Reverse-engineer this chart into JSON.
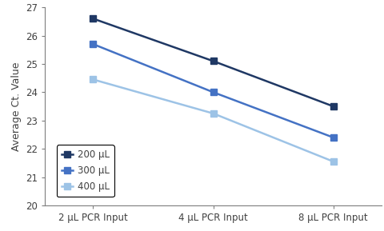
{
  "x_labels": [
    "2 μL PCR Input",
    "4 μL PCR Input",
    "8 μL PCR Input"
  ],
  "series": [
    {
      "label": "200 μL",
      "values": [
        26.6,
        25.1,
        23.5
      ],
      "color": "#1F3864",
      "marker": "s",
      "linewidth": 1.8
    },
    {
      "label": "300 μL",
      "values": [
        25.7,
        24.0,
        22.4
      ],
      "color": "#4472C4",
      "marker": "s",
      "linewidth": 1.8
    },
    {
      "label": "400 μL",
      "values": [
        24.45,
        23.25,
        21.55
      ],
      "color": "#9DC3E6",
      "marker": "s",
      "linewidth": 1.8
    }
  ],
  "ylabel": "Average Ct. Value",
  "ylim": [
    20,
    27
  ],
  "yticks": [
    20,
    21,
    22,
    23,
    24,
    25,
    26,
    27
  ],
  "background_color": "#FFFFFF",
  "plot_bg_color": "#FFFFFF",
  "legend_loc": "lower left",
  "marker_size": 6,
  "axis_color": "#7F7F7F"
}
